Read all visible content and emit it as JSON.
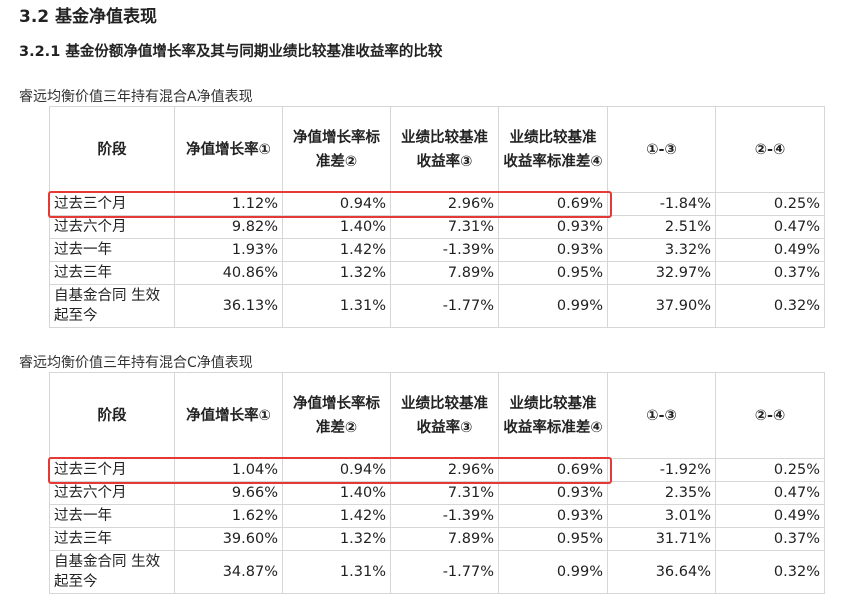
{
  "section_title": "3.2 基金净值表现",
  "subsection_title": "3.2.1 基金份额净值增长率及其与同期业绩比较基准收益率的比较",
  "headers": [
    "阶段",
    "净值增长率①",
    "净值增长率标准差②",
    "业绩比较基准收益率③",
    "业绩比较基准收益率标准差④",
    "①-③",
    "②-④"
  ],
  "tables": [
    {
      "caption": "睿远均衡价值三年持有混合A净值表现",
      "rows": [
        {
          "stage": "过去三个月",
          "v1": "1.12%",
          "v2": "0.94%",
          "v3": "2.96%",
          "v4": "0.69%",
          "v5": "-1.84%",
          "v6": "0.25%"
        },
        {
          "stage": "过去六个月",
          "v1": "9.82%",
          "v2": "1.40%",
          "v3": "7.31%",
          "v4": "0.93%",
          "v5": "2.51%",
          "v6": "0.47%"
        },
        {
          "stage": "过去一年",
          "v1": "1.93%",
          "v2": "1.42%",
          "v3": "-1.39%",
          "v4": "0.93%",
          "v5": "3.32%",
          "v6": "0.49%"
        },
        {
          "stage": "过去三年",
          "v1": "40.86%",
          "v2": "1.32%",
          "v3": "7.89%",
          "v4": "0.95%",
          "v5": "32.97%",
          "v6": "0.37%"
        },
        {
          "stage": "自基金合同 生效起至今",
          "v1": "36.13%",
          "v2": "1.31%",
          "v3": "-1.77%",
          "v4": "0.99%",
          "v5": "37.90%",
          "v6": "0.32%"
        }
      ]
    },
    {
      "caption": "睿远均衡价值三年持有混合C净值表现",
      "rows": [
        {
          "stage": "过去三个月",
          "v1": "1.04%",
          "v2": "0.94%",
          "v3": "2.96%",
          "v4": "0.69%",
          "v5": "-1.92%",
          "v6": "0.25%"
        },
        {
          "stage": "过去六个月",
          "v1": "9.66%",
          "v2": "1.40%",
          "v3": "7.31%",
          "v4": "0.93%",
          "v5": "2.35%",
          "v6": "0.47%"
        },
        {
          "stage": "过去一年",
          "v1": "1.62%",
          "v2": "1.42%",
          "v3": "-1.39%",
          "v4": "0.93%",
          "v5": "3.01%",
          "v6": "0.49%"
        },
        {
          "stage": "过去三年",
          "v1": "39.60%",
          "v2": "1.32%",
          "v3": "7.89%",
          "v4": "0.95%",
          "v5": "31.71%",
          "v6": "0.37%"
        },
        {
          "stage": "自基金合同 生效起至今",
          "v1": "34.87%",
          "v2": "1.31%",
          "v3": "-1.77%",
          "v4": "0.99%",
          "v5": "36.64%",
          "v6": "0.32%"
        }
      ]
    }
  ],
  "highlight_color": "#e53935"
}
